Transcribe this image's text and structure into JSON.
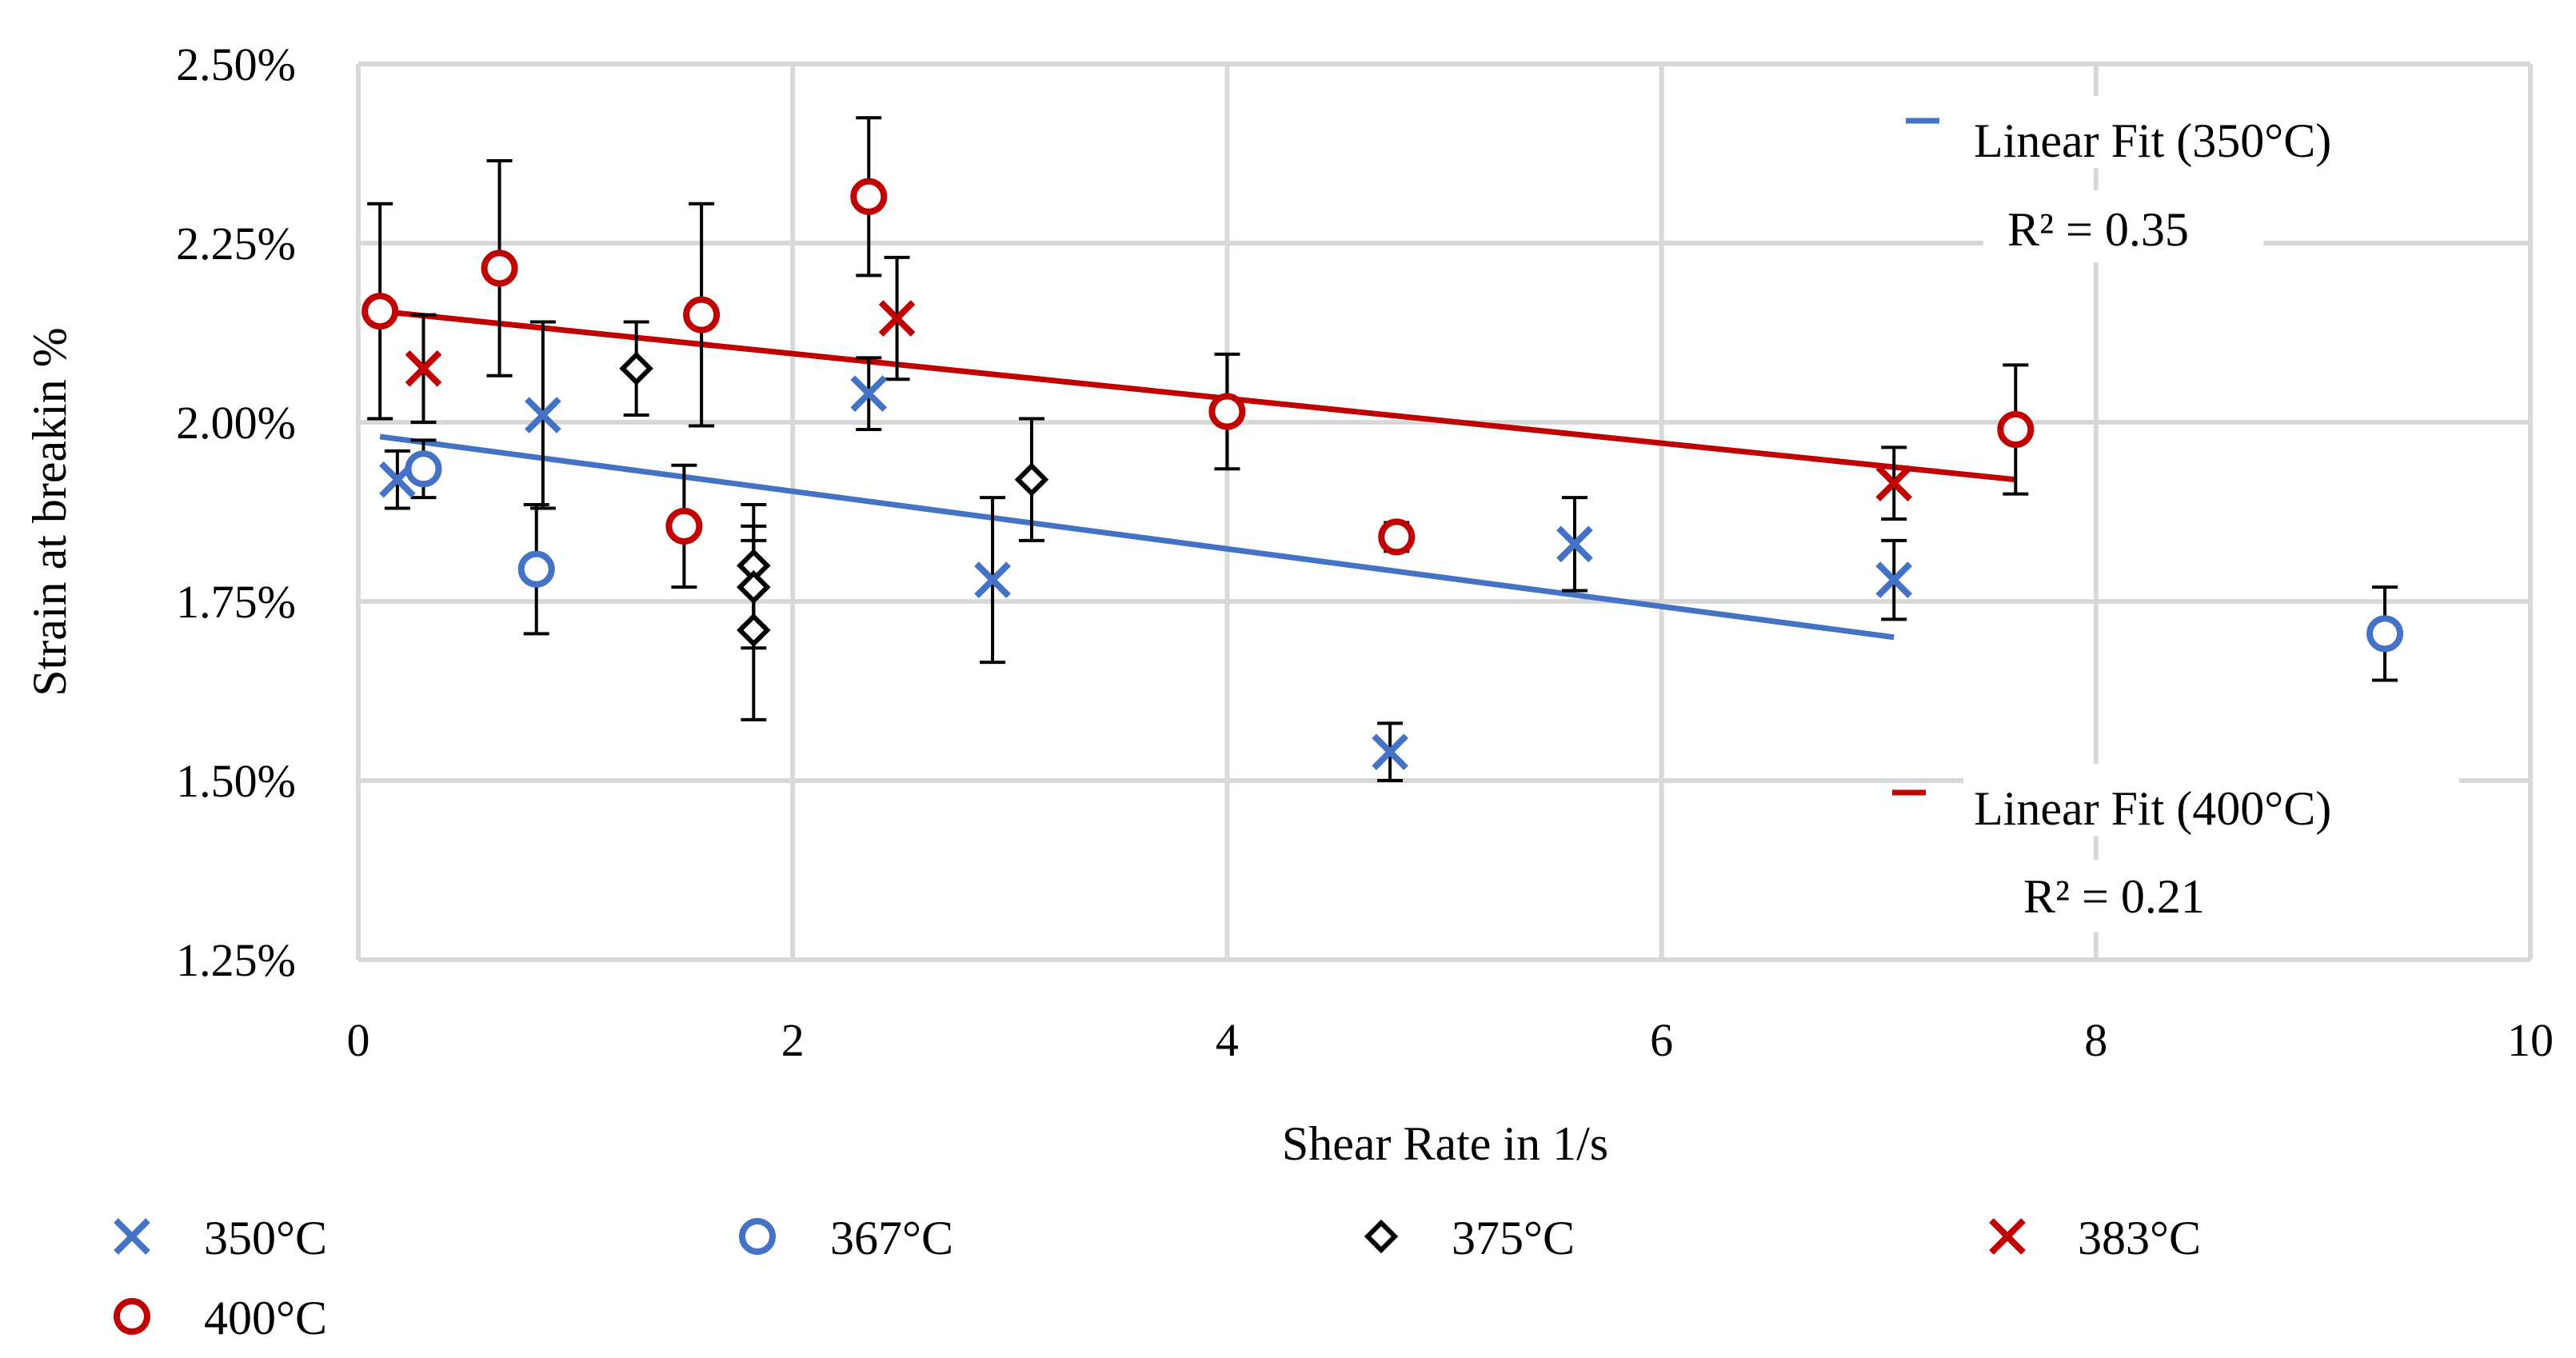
{
  "chart_data": {
    "type": "scatter",
    "title": "",
    "xlabel": "Shear Rate in 1/s",
    "ylabel": "Strain at breakin %",
    "xlim": [
      0,
      10
    ],
    "ylim": [
      1.25,
      2.5
    ],
    "x_ticks": [
      0,
      2,
      4,
      6,
      8,
      10
    ],
    "x_tick_labels": [
      "0",
      "2",
      "4",
      "6",
      "8",
      "10"
    ],
    "y_ticks": [
      1.25,
      1.5,
      1.75,
      2.0,
      2.25,
      2.5
    ],
    "y_tick_labels": [
      "1.25%",
      "1.50%",
      "1.75%",
      "2.00%",
      "2.25%",
      "2.50%"
    ],
    "grid": true,
    "legend_position": "bottom",
    "series": [
      {
        "name": "350°C",
        "marker": "x",
        "color": "#4472c4",
        "points": [
          {
            "x": 0.18,
            "y": 1.92,
            "err": 0.04
          },
          {
            "x": 0.85,
            "y": 2.01,
            "err": 0.13
          },
          {
            "x": 2.35,
            "y": 2.04,
            "err": 0.05
          },
          {
            "x": 2.92,
            "y": 1.78,
            "err": 0.115
          },
          {
            "x": 4.75,
            "y": 1.54,
            "err": 0.04
          },
          {
            "x": 5.6,
            "y": 1.83,
            "err": 0.065
          },
          {
            "x": 7.07,
            "y": 1.78,
            "err": 0.055
          }
        ]
      },
      {
        "name": "367°C",
        "marker": "circle",
        "color": "#4472c4",
        "points": [
          {
            "x": 0.3,
            "y": 1.935,
            "err": 0.04
          },
          {
            "x": 0.82,
            "y": 1.795,
            "err": 0.09
          },
          {
            "x": 9.33,
            "y": 1.705,
            "err": 0.065
          }
        ]
      },
      {
        "name": "375°C",
        "marker": "diamond",
        "color": "#000000",
        "points": [
          {
            "x": 1.28,
            "y": 2.075,
            "err": 0.065
          },
          {
            "x": 1.82,
            "y": 1.8,
            "err": 0.085
          },
          {
            "x": 1.82,
            "y": 1.77,
            "err": 0.085
          },
          {
            "x": 1.82,
            "y": 1.71,
            "err": 0.125
          },
          {
            "x": 3.1,
            "y": 1.92,
            "err": 0.085
          }
        ]
      },
      {
        "name": "383°C",
        "marker": "x",
        "color": "#c00000",
        "points": [
          {
            "x": 0.3,
            "y": 2.075,
            "err": 0.075
          },
          {
            "x": 2.48,
            "y": 2.145,
            "err": 0.085
          },
          {
            "x": 7.07,
            "y": 1.915,
            "err": 0.05
          }
        ]
      },
      {
        "name": "400°C",
        "marker": "circle",
        "color": "#c00000",
        "points": [
          {
            "x": 0.1,
            "y": 2.155,
            "err": 0.15
          },
          {
            "x": 0.65,
            "y": 2.215,
            "err": 0.15
          },
          {
            "x": 1.5,
            "y": 1.855,
            "err": 0.085
          },
          {
            "x": 1.58,
            "y": 2.15,
            "err": 0.155
          },
          {
            "x": 2.35,
            "y": 2.315,
            "err": 0.11
          },
          {
            "x": 4.0,
            "y": 2.015,
            "err": 0.08
          },
          {
            "x": 4.78,
            "y": 1.84,
            "err": 0.02
          },
          {
            "x": 7.63,
            "y": 1.99,
            "err": 0.09
          }
        ]
      }
    ],
    "fits": [
      {
        "name": "Linear Fit (350°C)",
        "r2_label": "R² = 0.35",
        "color": "#4472c4",
        "x": [
          0.1,
          7.07
        ],
        "y": [
          1.98,
          1.7
        ]
      },
      {
        "name": "Linear Fit (400°C)",
        "r2_label": "R² = 0.21",
        "color": "#c00000",
        "x": [
          0.1,
          7.63
        ],
        "y": [
          2.155,
          1.92
        ]
      }
    ]
  }
}
